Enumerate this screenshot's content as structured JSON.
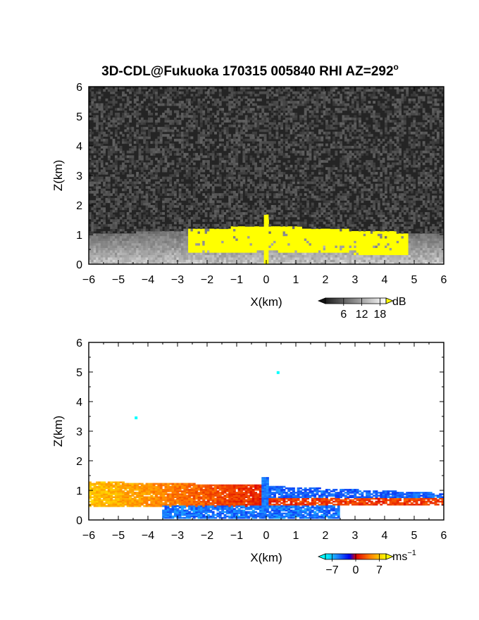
{
  "title": "3D-CDL@Fukuoka 170315 005840 RHI AZ=292",
  "title_superscript": "o",
  "chart_data": [
    {
      "type": "heatmap",
      "quantity": "backscatter intensity",
      "xlabel": "X(km)",
      "ylabel": "Z(km)",
      "xlim": [
        -6,
        6
      ],
      "ylim": [
        0,
        6
      ],
      "xticks": [
        "−6",
        "−5",
        "−4",
        "−3",
        "−2",
        "−1",
        "0",
        "1",
        "2",
        "3",
        "4",
        "5",
        "6"
      ],
      "yticks": [
        "0",
        "1",
        "2",
        "3",
        "4",
        "5",
        "6"
      ],
      "colorbar": {
        "unit": "dB",
        "ticks": [
          "6",
          "12",
          "18"
        ],
        "tick_values": [
          6,
          12,
          18
        ],
        "range": [
          0,
          20
        ],
        "colormap": "grayscale with yellow over-range",
        "over_color": "#ffff00"
      },
      "features": {
        "background_noise": "dark grey speckle, about 2-6 dB",
        "boundary_layer_top_km": 1.3,
        "saturated_region_x_km": [
          -2.6,
          4.8
        ],
        "saturated_region_z_km": [
          0.4,
          1.4
        ],
        "plume_x_km": 0.0,
        "plume_top_km": 1.7
      }
    },
    {
      "type": "heatmap",
      "quantity": "radial velocity",
      "xlabel": "X(km)",
      "ylabel": "Z(km)",
      "xlim": [
        -6,
        6
      ],
      "ylim": [
        0,
        6
      ],
      "xticks": [
        "−6",
        "−5",
        "−4",
        "−3",
        "−2",
        "−1",
        "0",
        "1",
        "2",
        "3",
        "4",
        "5",
        "6"
      ],
      "yticks": [
        "0",
        "1",
        "2",
        "3",
        "4",
        "5",
        "6"
      ],
      "colorbar": {
        "unit": "ms",
        "unit_exponent": "−1",
        "ticks": [
          "−7",
          "0",
          "7"
        ],
        "tick_values": [
          -7,
          0,
          7
        ],
        "range": [
          -9,
          9
        ],
        "colormap": "cyan-blue-red-orange-yellow"
      },
      "features": {
        "positive_layer_x_km": [
          -6,
          0
        ],
        "positive_layer_z_km": [
          0.4,
          1.3
        ],
        "negative_layer_x_km": [
          0.5,
          6
        ],
        "negative_layer_z_km": [
          0.5,
          1.0
        ],
        "near_ground_negative_x_km": [
          -3.5,
          2.5
        ],
        "isolated_points": [
          {
            "x": -4.4,
            "z": 3.45
          },
          {
            "x": 0.4,
            "z": 4.98
          }
        ]
      }
    }
  ]
}
